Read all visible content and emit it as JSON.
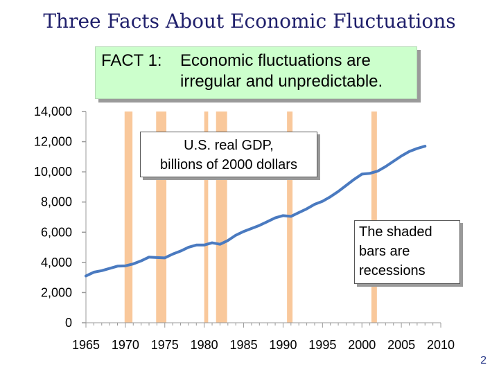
{
  "title": "Three Facts About Economic Fluctuations",
  "fact": {
    "label": "FACT 1:",
    "line1": "Economic fluctuations are",
    "line2": "irregular and unpredictable."
  },
  "annotations": {
    "gdp_line1": "U.S. real GDP,",
    "gdp_line2": "billions of 2000 dollars",
    "recession_line1": "The shaded",
    "recession_line2": "bars are",
    "recession_line3": "recessions"
  },
  "page_number": "2",
  "colors": {
    "line": "#4a7ac0",
    "recession": "#f9c89b",
    "fact_box": "#ccffcc",
    "title": "#1f1f6b"
  },
  "chart_data": {
    "type": "line",
    "title": "U.S. real GDP, billions of 2000 dollars",
    "xlabel": "",
    "ylabel": "",
    "xlim": [
      1965,
      2010
    ],
    "ylim": [
      0,
      14000
    ],
    "xticks": [
      1965,
      1970,
      1975,
      1980,
      1985,
      1990,
      1995,
      2000,
      2005,
      2010
    ],
    "xtick_labels": [
      "1965",
      "1970",
      "1975",
      "1980",
      "1985",
      "1990",
      "1995",
      "2000",
      "2005",
      "2010"
    ],
    "yticks": [
      0,
      2000,
      4000,
      6000,
      8000,
      10000,
      12000,
      14000
    ],
    "ytick_labels": [
      "0",
      "2,000",
      "4,000",
      "6,000",
      "8,000",
      "10,000",
      "12,000",
      "14,000"
    ],
    "recessions": [
      {
        "start": 1969.9,
        "end": 1970.9
      },
      {
        "start": 1973.9,
        "end": 1975.2
      },
      {
        "start": 1980.0,
        "end": 1980.5
      },
      {
        "start": 1981.5,
        "end": 1982.9
      },
      {
        "start": 1990.5,
        "end": 1991.2
      },
      {
        "start": 2001.2,
        "end": 2001.9
      }
    ],
    "series": [
      {
        "name": "U.S. real GDP",
        "x": [
          1965,
          1966,
          1967,
          1968,
          1969,
          1970,
          1971,
          1972,
          1973,
          1974,
          1975,
          1976,
          1977,
          1978,
          1979,
          1980,
          1981,
          1982,
          1983,
          1984,
          1985,
          1986,
          1987,
          1988,
          1989,
          1990,
          1991,
          1992,
          1993,
          1994,
          1995,
          1996,
          1997,
          1998,
          1999,
          2000,
          2001,
          2002,
          2003,
          2004,
          2005,
          2006,
          2007,
          2008
        ],
        "values": [
          3100,
          3350,
          3450,
          3600,
          3750,
          3770,
          3900,
          4100,
          4350,
          4320,
          4300,
          4550,
          4750,
          5000,
          5150,
          5150,
          5300,
          5200,
          5450,
          5800,
          6050,
          6250,
          6450,
          6700,
          6950,
          7100,
          7050,
          7300,
          7550,
          7850,
          8050,
          8350,
          8700,
          9100,
          9500,
          9850,
          9900,
          10050,
          10350,
          10700,
          11050,
          11350,
          11550,
          11700
        ]
      }
    ]
  }
}
